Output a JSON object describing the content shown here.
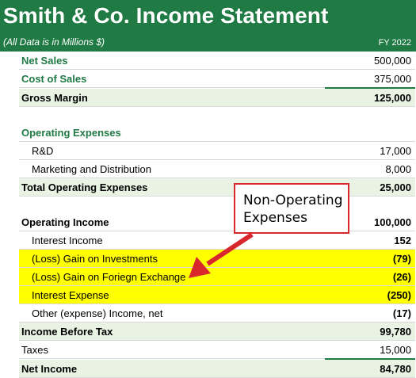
{
  "header": {
    "title": "Smith & Co. Income Statement",
    "subtitle": "(All Data is in Millions $)",
    "period": "FY 2022"
  },
  "rows": [
    {
      "label": "Net Sales",
      "value": "500,000"
    },
    {
      "label": "Cost of Sales",
      "value": "375,000"
    },
    {
      "label": "Gross Margin",
      "value": "125,000"
    },
    {
      "label": "Operating Expenses",
      "value": ""
    },
    {
      "label": "R&D",
      "value": "17,000"
    },
    {
      "label": "Marketing and Distribution",
      "value": "8,000"
    },
    {
      "label": "Total Operating Expenses",
      "value": "25,000"
    },
    {
      "label": "Operating Income",
      "value": "100,000"
    },
    {
      "label": "Interest Income",
      "value": "152"
    },
    {
      "label": "(Loss) Gain on Investments",
      "value": "(79)"
    },
    {
      "label": "(Loss) Gain on Foriegn Exchange",
      "value": "(26)"
    },
    {
      "label": "Interest Expense",
      "value": "(250)"
    },
    {
      "label": "Other (expense) Income, net",
      "value": "(17)"
    },
    {
      "label": "Income Before Tax",
      "value": "99,780"
    },
    {
      "label": "Taxes",
      "value": "15,000"
    },
    {
      "label": "Net Income",
      "value": "84,780"
    }
  ],
  "callout": {
    "line1": "Non-Operating",
    "line2": "Expenses"
  },
  "colors": {
    "header_bg": "#1f7a44",
    "highlight": "#ffff00",
    "shade": "#e9f3e3",
    "callout_border": "#d9272e"
  }
}
